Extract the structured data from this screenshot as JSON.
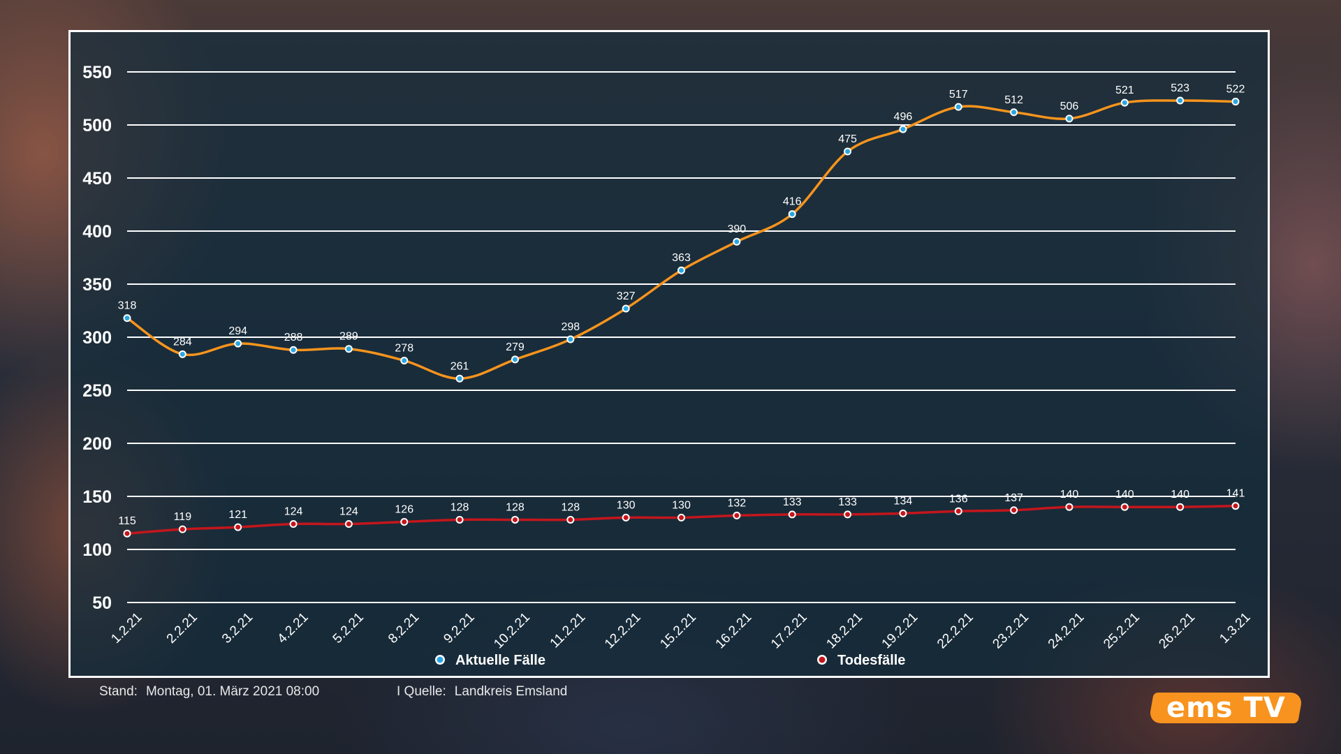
{
  "chart_data": {
    "type": "line",
    "categories": [
      "1.2.21",
      "2.2.21",
      "3.2.21",
      "4.2.21",
      "5.2.21",
      "8.2.21",
      "9.2.21",
      "10.2.21",
      "11.2.21",
      "12.2.21",
      "15.2.21",
      "16.2.21",
      "17.2.21",
      "18.2.21",
      "19.2.21",
      "22.2.21",
      "23.2.21",
      "24.2.21",
      "25.2.21",
      "26.2.21",
      "1.3.21"
    ],
    "series": [
      {
        "name": "Aktuelle Fälle",
        "color": "#f7941d",
        "marker_color": "#2aa7e1",
        "values": [
          318,
          284,
          294,
          288,
          289,
          278,
          261,
          279,
          298,
          327,
          363,
          390,
          416,
          475,
          496,
          517,
          512,
          506,
          521,
          523,
          522
        ]
      },
      {
        "name": "Todesfälle",
        "color": "#c4161c",
        "marker_color": "#c4161c",
        "values": [
          115,
          119,
          121,
          124,
          124,
          126,
          128,
          128,
          128,
          130,
          130,
          132,
          133,
          133,
          134,
          136,
          137,
          140,
          140,
          140,
          141
        ]
      }
    ],
    "yticks": [
      50,
      100,
      150,
      200,
      250,
      300,
      350,
      400,
      450,
      500,
      550
    ],
    "ylim": [
      50,
      550
    ],
    "grid": true,
    "legend_position": "bottom"
  },
  "footer": {
    "stand_label": "Stand:",
    "stand_value": "Montag, 01. März 2021 08:00",
    "source_label": "I Quelle:",
    "source_value": "Landkreis Emsland"
  },
  "logo": {
    "text": "ems TV",
    "color": "#f7931e"
  }
}
